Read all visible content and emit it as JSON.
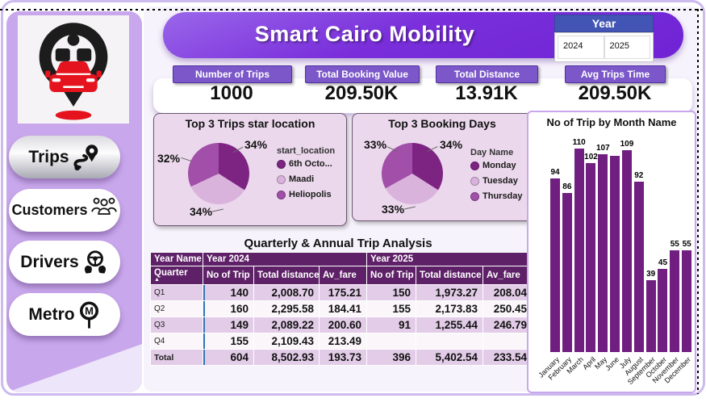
{
  "app": {
    "title": "Smart Cairo Mobility"
  },
  "sidebar": {
    "logo": "train-car-location-pin",
    "nav": [
      {
        "label": "Trips",
        "selected": true
      },
      {
        "label": "Customers",
        "selected": false
      },
      {
        "label": "Drivers",
        "selected": false
      },
      {
        "label": "Metro",
        "selected": false
      }
    ]
  },
  "year_slicer": {
    "title": "Year",
    "options": [
      "2024",
      "2025"
    ]
  },
  "kpis": [
    {
      "label": "Number of Trips",
      "value": "1000"
    },
    {
      "label": "Total Booking Value",
      "value": "209.50K"
    },
    {
      "label": "Total Distance",
      "value": "13.91K"
    },
    {
      "label": "Avg Trips Time",
      "value": "209.50K"
    }
  ],
  "colors": {
    "header_purple": "#7A2FDB",
    "sidebar_purple": "#C9A7EC",
    "chip_purple": "#7B57C9",
    "bar_purple": "#701E80",
    "pie_dark": "#7D2483",
    "pie_light": "#D9B3DC",
    "pie_mid": "#A14FA8",
    "table_header": "#5E2167",
    "slicer_header": "#4355B4"
  },
  "chart_data": [
    {
      "type": "pie",
      "title": "Top 3 Trips star location",
      "legend_title": "start_location",
      "legend_position": "right",
      "slices": [
        {
          "label": "6th Octo...",
          "pct_label": "34%",
          "value": 34,
          "color": "#7D2483"
        },
        {
          "label": "Maadi",
          "pct_label": "34%",
          "value": 34,
          "color": "#D9B3DC"
        },
        {
          "label": "Heliopolis",
          "pct_label": "32%",
          "value": 32,
          "color": "#A14FA8"
        }
      ]
    },
    {
      "type": "pie",
      "title": "Top 3 Booking Days",
      "legend_title": "Day Name",
      "legend_position": "right",
      "slices": [
        {
          "label": "Monday",
          "pct_label": "34%",
          "value": 34,
          "color": "#7D2483"
        },
        {
          "label": "Tuesday",
          "pct_label": "33%",
          "value": 33,
          "color": "#D9B3DC"
        },
        {
          "label": "Thursday",
          "pct_label": "33%",
          "value": 33,
          "color": "#A14FA8"
        }
      ]
    },
    {
      "type": "bar",
      "title": "No of Trip by Month Name",
      "categories": [
        "January",
        "February",
        "March",
        "April",
        "May",
        "June",
        "July",
        "August",
        "September",
        "October",
        "November",
        "December"
      ],
      "values": [
        94,
        86,
        110,
        102,
        107,
        106,
        109,
        92,
        39,
        45,
        55,
        55
      ],
      "data_labels": [
        "94",
        "86",
        "110",
        "102",
        "107",
        "",
        "109",
        "92",
        "39",
        "45",
        "55",
        "55"
      ],
      "ylim": [
        0,
        110
      ],
      "bar_color": "#701E80",
      "grid": false,
      "xlabel": "Month Name",
      "ylabel": "No of Trip"
    },
    {
      "type": "table",
      "title": "Quarterly & Annual Trip Analysis",
      "corner_header": "Year Name",
      "row_header": "Quarter",
      "sort_indicator": "▲",
      "groups": [
        {
          "label": "Year 2024",
          "columns": [
            "No of Trip",
            "Total distance",
            "Av_fare"
          ]
        },
        {
          "label": "Year 2025",
          "columns": [
            "No of Trip",
            "Total distance",
            "Av_fare"
          ]
        }
      ],
      "rows": [
        {
          "label": "Q1",
          "cells": [
            "140",
            "2,008.70",
            "175.21",
            "150",
            "1,973.27",
            "208.04"
          ]
        },
        {
          "label": "Q2",
          "cells": [
            "160",
            "2,295.58",
            "184.41",
            "155",
            "2,173.83",
            "250.45"
          ]
        },
        {
          "label": "Q3",
          "cells": [
            "149",
            "2,089.22",
            "200.60",
            "91",
            "1,255.44",
            "246.79"
          ]
        },
        {
          "label": "Q4",
          "cells": [
            "155",
            "2,109.43",
            "213.49",
            "",
            "",
            ""
          ]
        },
        {
          "label": "Total",
          "cells": [
            "604",
            "8,502.93",
            "193.73",
            "396",
            "5,402.54",
            "233.54"
          ]
        }
      ]
    }
  ]
}
